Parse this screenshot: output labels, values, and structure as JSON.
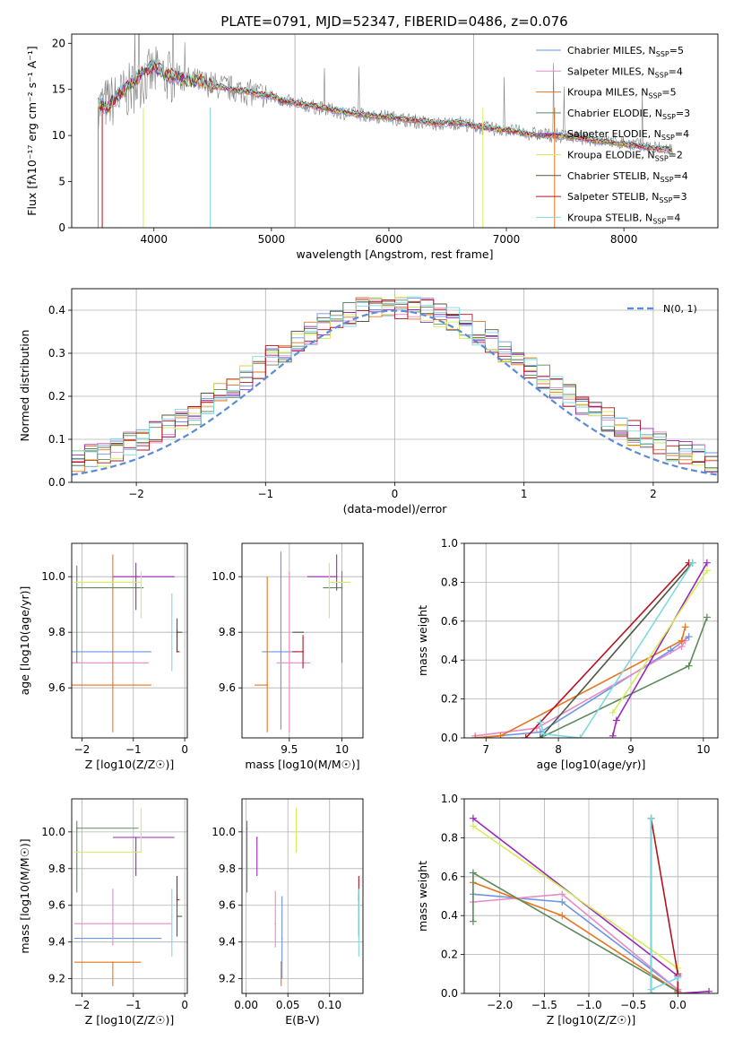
{
  "chart_data": [
    {
      "id": "spectrum",
      "type": "line",
      "title": "PLATE=0791, MJD=52347, FIBERID=0486, z=0.076",
      "xlabel": "wavelength [Angstrom, rest frame]",
      "ylabel": "Flux [fλ10⁻¹⁷ erg cm⁻² s⁻¹ A⁻¹]",
      "xlim": [
        3300,
        8800
      ],
      "ylim": [
        0,
        21
      ],
      "xticks": [
        4000,
        5000,
        6000,
        7000,
        8000
      ],
      "yticks": [
        0,
        5,
        10,
        15,
        20
      ],
      "grid": false,
      "legend_position": "top-right",
      "observed": {
        "x": [
          3525,
          3600,
          3700,
          3800,
          3900,
          4000,
          4100,
          4200,
          4300,
          4400,
          4500,
          4600,
          4700,
          4800,
          4900,
          5000,
          5100,
          5200,
          5400,
          5600,
          5800,
          6000,
          6200,
          6400,
          6600,
          6800,
          7000,
          7200,
          7400,
          7600,
          7800,
          8000,
          8200,
          8400
        ],
        "y": [
          13.0,
          13.5,
          14.0,
          15.0,
          16.0,
          16.8,
          16.5,
          16.2,
          16.0,
          15.8,
          15.5,
          15.2,
          15.0,
          14.7,
          14.5,
          14.2,
          13.8,
          13.5,
          13.0,
          12.5,
          12.2,
          12.0,
          11.6,
          11.2,
          11.4,
          10.8,
          10.6,
          10.2,
          10.0,
          9.8,
          9.5,
          9.2,
          8.8,
          8.5
        ]
      },
      "model": {
        "x": [
          3525,
          3600,
          3700,
          3800,
          3900,
          4000,
          4100,
          4200,
          4300,
          4400,
          4500,
          4600,
          4700,
          4800,
          4900,
          5000,
          5100,
          5200,
          5400,
          5600,
          5800,
          6000,
          6200,
          6400,
          6600,
          6800,
          7000,
          7200,
          7400,
          7600,
          7800,
          8000,
          8200,
          8400
        ],
        "y": [
          13.5,
          13.0,
          14.5,
          15.5,
          16.8,
          17.5,
          16.6,
          16.3,
          15.9,
          15.9,
          15.4,
          15.2,
          14.9,
          14.8,
          14.4,
          14.3,
          13.7,
          13.5,
          13.1,
          12.6,
          12.2,
          12.0,
          11.7,
          11.3,
          11.4,
          10.9,
          10.6,
          10.1,
          10.0,
          9.8,
          9.4,
          9.1,
          8.7,
          8.4
        ]
      },
      "legend": [
        {
          "label": "Chabrier MILES, N",
          "sub": "SSP",
          "rest": "=5",
          "color": "#6b96e0"
        },
        {
          "label": "Salpeter MILES, N",
          "sub": "SSP",
          "rest": "=4",
          "color": "#e68ac8"
        },
        {
          "label": "Kroupa MILES, N",
          "sub": "SSP",
          "rest": "=5",
          "color": "#e8741d"
        },
        {
          "label": "Chabrier ELODIE, N",
          "sub": "SSP",
          "rest": "=3",
          "color": "#5c8a5c"
        },
        {
          "label": "Salpeter ELODIE, N",
          "sub": "SSP",
          "rest": "=4",
          "color": "#9a28b8"
        },
        {
          "label": "Kroupa ELODIE, N",
          "sub": "SSP",
          "rest": "=2",
          "color": "#d6ec5a"
        },
        {
          "label": "Chabrier STELIB, N",
          "sub": "SSP",
          "rest": "=4",
          "color": "#4d5a40"
        },
        {
          "label": "Salpeter STELIB, N",
          "sub": "SSP",
          "rest": "=3",
          "color": "#b3141e"
        },
        {
          "label": "Kroupa STELIB, N",
          "sub": "SSP",
          "rest": "=4",
          "color": "#7fd8e0"
        }
      ],
      "observed_color": "#808080"
    },
    {
      "id": "residuals",
      "type": "line",
      "xlabel": "(data-model)/error",
      "ylabel": "Normed distribution",
      "xlim": [
        -2.5,
        2.5
      ],
      "ylim": [
        0,
        0.45
      ],
      "xticks": [
        -2,
        -1,
        0,
        1,
        2
      ],
      "yticks": [
        0.0,
        0.1,
        0.2,
        0.3,
        0.4
      ],
      "grid": true,
      "legend_position": "top-right",
      "normal_label": "N(0, 1)",
      "normal_color": "#5b8ad8",
      "bin_edges_start": -2.5,
      "bin_width": 0.1,
      "series_colors": [
        "#6b96e0",
        "#e68ac8",
        "#e8741d",
        "#5c8a5c",
        "#9a28b8",
        "#d6ec5a",
        "#4d5a40",
        "#b3141e",
        "#7fd8e0"
      ]
    },
    {
      "id": "age-vs-Z",
      "type": "scatter",
      "xlabel": "Z [log10(Z/Z☉)]",
      "ylabel": "age  [log10(age/yr)]",
      "xlim": [
        -2.2,
        0.05
      ],
      "ylim": [
        9.42,
        10.12
      ],
      "xticks": [
        -2,
        -1,
        0
      ],
      "yticks": [
        9.6,
        9.8,
        10.0
      ],
      "grid": true,
      "points": [
        {
          "x": -1.4,
          "y": 9.73,
          "xerr": [
            0.9,
            0.75
          ],
          "yerr": [
            0.0,
            0.0
          ],
          "color": "#6b96e0"
        },
        {
          "x": -1.4,
          "y": 9.69,
          "xerr": [
            0.9,
            0.7
          ],
          "yerr": [
            0.0,
            0.0
          ],
          "color": "#e68ac8"
        },
        {
          "x": -1.4,
          "y": 9.61,
          "xerr": [
            0.9,
            0.75
          ],
          "yerr": [
            0.17,
            0.47
          ],
          "color": "#e8741d"
        },
        {
          "x": -2.1,
          "y": 9.96,
          "xerr": [
            0.0,
            1.3
          ],
          "yerr": [
            0.27,
            0.08
          ],
          "color": "#5c8a5c"
        },
        {
          "x": -0.95,
          "y": 10.0,
          "xerr": [
            0.45,
            0.75
          ],
          "yerr": [
            0.12,
            0.05
          ],
          "color": "#9a28b8"
        },
        {
          "x": -0.85,
          "y": 9.98,
          "xerr": [
            1.3,
            0.0
          ],
          "yerr": [
            0.13,
            0.04
          ],
          "color": "#d6ec5a"
        },
        {
          "x": -0.15,
          "y": 9.8,
          "xerr": [
            0.0,
            0.1
          ],
          "yerr": [
            0.07,
            0.05
          ],
          "color": "#4d5a40"
        },
        {
          "x": -0.15,
          "y": 9.73,
          "xerr": [
            0.0,
            0.05
          ],
          "yerr": [
            0.0,
            0.08
          ],
          "color": "#b3141e"
        },
        {
          "x": -0.25,
          "y": 9.8,
          "xerr": [
            0.0,
            0.0
          ],
          "yerr": [
            0.14,
            0.14
          ],
          "color": "#7fd8e0"
        }
      ]
    },
    {
      "id": "age-vs-mass",
      "type": "scatter",
      "xlabel": "mass [log10(M/M☉)]",
      "ylabel": "",
      "xlim": [
        9.05,
        10.2
      ],
      "ylim": [
        9.42,
        10.12
      ],
      "xticks": [
        9.5,
        10.0
      ],
      "yticks": [
        9.6,
        9.8,
        10.0
      ],
      "grid": true,
      "points": [
        {
          "x": 9.42,
          "y": 9.73,
          "xerr": [
            0.18,
            0.15
          ],
          "yerr": [
            0.28,
            0.36
          ],
          "color": "#6b96e0"
        },
        {
          "x": 9.5,
          "y": 9.69,
          "xerr": [
            0.12,
            0.2
          ],
          "yerr": [
            0.25,
            0.33
          ],
          "color": "#e68ac8"
        },
        {
          "x": 9.29,
          "y": 9.61,
          "xerr": [
            0.12,
            0.0
          ],
          "yerr": [
            0.17,
            0.39
          ],
          "color": "#e8741d"
        },
        {
          "x": 10.0,
          "y": 9.96,
          "xerr": [
            0.18,
            0.0
          ],
          "yerr": [
            0.27,
            0.06
          ],
          "color": "#5c8a5c"
        },
        {
          "x": 9.95,
          "y": 10.0,
          "xerr": [
            0.28,
            0.0
          ],
          "yerr": [
            0.05,
            0.08
          ],
          "color": "#9a28b8"
        },
        {
          "x": 9.88,
          "y": 9.98,
          "xerr": [
            0.0,
            0.2
          ],
          "yerr": [
            0.13,
            0.07
          ],
          "color": "#d6ec5a"
        },
        {
          "x": 9.63,
          "y": 9.8,
          "xerr": [
            0.1,
            0.0
          ],
          "yerr": [
            0.0,
            0.0
          ],
          "color": "#4d5a40"
        },
        {
          "x": 9.63,
          "y": 9.73,
          "xerr": [
            0.1,
            0.0
          ],
          "yerr": [
            0.06,
            0.06
          ],
          "color": "#b3141e"
        }
      ]
    },
    {
      "id": "mass-weight-vs-age",
      "type": "line",
      "xlabel": "age  [log10(age/yr)]",
      "ylabel": "mass weight",
      "xlim": [
        6.7,
        10.2
      ],
      "ylim": [
        0,
        1.0
      ],
      "xticks": [
        7,
        8,
        9,
        10
      ],
      "yticks": [
        0.0,
        0.2,
        0.4,
        0.6,
        0.8,
        1.0
      ],
      "grid": true,
      "series": [
        {
          "color": "#6b96e0",
          "x": [
            6.85,
            7.75,
            9.55,
            9.8
          ],
          "y": [
            0.0,
            0.03,
            0.45,
            0.52
          ]
        },
        {
          "color": "#e68ac8",
          "x": [
            6.85,
            7.7,
            9.7,
            9.75
          ],
          "y": [
            0.01,
            0.05,
            0.47,
            0.5
          ]
        },
        {
          "color": "#e8741d",
          "x": [
            6.85,
            7.2,
            9.7,
            9.75
          ],
          "y": [
            0.0,
            0.01,
            0.5,
            0.57
          ]
        },
        {
          "color": "#5c8a5c",
          "x": [
            7.75,
            9.8,
            10.05
          ],
          "y": [
            0.0,
            0.37,
            0.62
          ]
        },
        {
          "color": "#9a28b8",
          "x": [
            8.75,
            8.8,
            10.05
          ],
          "y": [
            0.01,
            0.09,
            0.9
          ]
        },
        {
          "color": "#d6ec5a",
          "x": [
            8.75,
            10.05
          ],
          "y": [
            0.13,
            0.86
          ]
        },
        {
          "color": "#4d5a40",
          "x": [
            7.75,
            9.85
          ],
          "y": [
            0.0,
            0.9
          ]
        },
        {
          "color": "#b3141e",
          "x": [
            7.55,
            9.8
          ],
          "y": [
            0.0,
            0.9
          ]
        },
        {
          "color": "#7fd8e0",
          "x": [
            7.75,
            7.8,
            8.3,
            9.85
          ],
          "y": [
            0.08,
            0.02,
            0.0,
            0.9
          ]
        }
      ]
    },
    {
      "id": "mass-vs-Z",
      "type": "scatter",
      "xlabel": "Z [log10(Z/Z☉)]",
      "ylabel": "mass [log10(M/M☉)]",
      "xlim": [
        -2.2,
        0.05
      ],
      "ylim": [
        9.12,
        10.18
      ],
      "xticks": [
        -2,
        -1,
        0
      ],
      "yticks": [
        9.2,
        9.4,
        9.6,
        9.8,
        10.0
      ],
      "grid": true,
      "points": [
        {
          "x": -1.4,
          "y": 9.42,
          "xerr": [
            0.75,
            0.95
          ],
          "yerr": [
            0.0,
            0.0
          ],
          "color": "#6b96e0"
        },
        {
          "x": -1.4,
          "y": 9.5,
          "xerr": [
            0.75,
            1.15
          ],
          "yerr": [
            0.12,
            0.19
          ],
          "color": "#e68ac8"
        },
        {
          "x": -1.4,
          "y": 9.29,
          "xerr": [
            0.75,
            0.55
          ],
          "yerr": [
            0.13,
            0.0
          ],
          "color": "#e8741d"
        },
        {
          "x": -2.1,
          "y": 10.02,
          "xerr": [
            0.0,
            1.2
          ],
          "yerr": [
            0.35,
            0.04
          ],
          "color": "#5c8a5c"
        },
        {
          "x": -0.95,
          "y": 9.97,
          "xerr": [
            0.45,
            0.75
          ],
          "yerr": [
            0.21,
            0.0
          ],
          "color": "#9a28b8"
        },
        {
          "x": -0.85,
          "y": 9.89,
          "xerr": [
            1.3,
            0.0
          ],
          "yerr": [
            0.0,
            0.24
          ],
          "color": "#d6ec5a"
        },
        {
          "x": -0.15,
          "y": 9.54,
          "xerr": [
            0.0,
            0.1
          ],
          "yerr": [
            0.11,
            0.12
          ],
          "color": "#4d5a40"
        },
        {
          "x": -0.15,
          "y": 9.63,
          "xerr": [
            0.0,
            0.05
          ],
          "yerr": [
            0.0,
            0.13
          ],
          "color": "#b3141e"
        },
        {
          "x": -0.25,
          "y": 9.54,
          "xerr": [
            0.0,
            0.0
          ],
          "yerr": [
            0.22,
            0.15
          ],
          "color": "#7fd8e0"
        }
      ]
    },
    {
      "id": "ebv",
      "type": "scatter",
      "xlabel": "E(B-V)",
      "ylabel": "",
      "xlim": [
        -0.005,
        0.14
      ],
      "ylim": [
        9.12,
        10.18
      ],
      "xticks": [
        0.0,
        0.05,
        0.1
      ],
      "yticks": [
        9.2,
        9.4,
        9.6,
        9.8,
        10.0
      ],
      "grid": true,
      "points": [
        {
          "x": 0.043,
          "y": 9.42,
          "xerr": [
            0.0,
            0.0
          ],
          "yerr": [
            0.22,
            0.23
          ],
          "color": "#6b96e0"
        },
        {
          "x": 0.035,
          "y": 9.5,
          "xerr": [
            0.0,
            0.0
          ],
          "yerr": [
            0.13,
            0.18
          ],
          "color": "#e68ac8"
        },
        {
          "x": 0.042,
          "y": 9.29,
          "xerr": [
            0.0,
            0.0
          ],
          "yerr": [
            0.13,
            0.0
          ],
          "color": "#e8741d"
        },
        {
          "x": 0.001,
          "y": 10.02,
          "xerr": [
            0.0,
            0.0
          ],
          "yerr": [
            0.35,
            0.04
          ],
          "color": "#5c8a5c"
        },
        {
          "x": 0.013,
          "y": 9.97,
          "xerr": [
            0.0,
            0.0
          ],
          "yerr": [
            0.21,
            0.0
          ],
          "color": "#9a28b8"
        },
        {
          "x": 0.06,
          "y": 9.89,
          "xerr": [
            0.0,
            0.0
          ],
          "yerr": [
            0.0,
            0.24
          ],
          "color": "#d6ec5a"
        },
        {
          "x": 0.135,
          "y": 9.54,
          "xerr": [
            0.0,
            0.0
          ],
          "yerr": [
            0.11,
            0.12
          ],
          "color": "#4d5a40"
        },
        {
          "x": 0.135,
          "y": 9.63,
          "xerr": [
            0.0,
            0.0
          ],
          "yerr": [
            0.0,
            0.13
          ],
          "color": "#b3141e"
        },
        {
          "x": 0.135,
          "y": 9.54,
          "xerr": [
            0.0,
            0.0
          ],
          "yerr": [
            0.22,
            0.15
          ],
          "color": "#7fd8e0"
        }
      ]
    },
    {
      "id": "mass-weight-vs-Z",
      "type": "line",
      "xlabel": "Z [log10(Z/Z☉)]",
      "ylabel": "mass weight",
      "xlim": [
        -2.4,
        0.45
      ],
      "ylim": [
        0,
        1.0
      ],
      "xticks": [
        -2.0,
        -1.5,
        -1.0,
        -0.5,
        0.0
      ],
      "yticks": [
        0.0,
        0.2,
        0.4,
        0.6,
        0.8,
        1.0
      ],
      "grid": true,
      "series": [
        {
          "color": "#6b96e0",
          "x": [
            -2.3,
            -1.3,
            0.0,
            0.0
          ],
          "y": [
            0.51,
            0.47,
            0.02,
            0.0
          ]
        },
        {
          "color": "#e68ac8",
          "x": [
            -2.3,
            -1.3,
            0.0
          ],
          "y": [
            0.47,
            0.51,
            0.02
          ]
        },
        {
          "color": "#e8741d",
          "x": [
            -2.3,
            -1.3,
            0.0
          ],
          "y": [
            0.57,
            0.4,
            0.01
          ]
        },
        {
          "color": "#5c8a5c",
          "x": [
            -2.3,
            -2.3,
            0.0
          ],
          "y": [
            0.37,
            0.62,
            0.01
          ]
        },
        {
          "color": "#9a28b8",
          "x": [
            -2.3,
            0.0,
            0.0,
            0.35
          ],
          "y": [
            0.9,
            0.09,
            0.0,
            0.01
          ]
        },
        {
          "color": "#d6ec5a",
          "x": [
            -2.3,
            0.0
          ],
          "y": [
            0.86,
            0.13
          ]
        },
        {
          "color": "#4d5a40",
          "x": [
            -0.3,
            -0.3,
            0.0
          ],
          "y": [
            0.9,
            0.0,
            0.0
          ]
        },
        {
          "color": "#b3141e",
          "x": [
            -0.3,
            0.0,
            0.0
          ],
          "y": [
            0.9,
            0.1,
            0.0
          ]
        },
        {
          "color": "#7fd8e0",
          "x": [
            -0.3,
            -0.3,
            0.0
          ],
          "y": [
            0.9,
            0.02,
            0.08
          ]
        }
      ]
    }
  ]
}
